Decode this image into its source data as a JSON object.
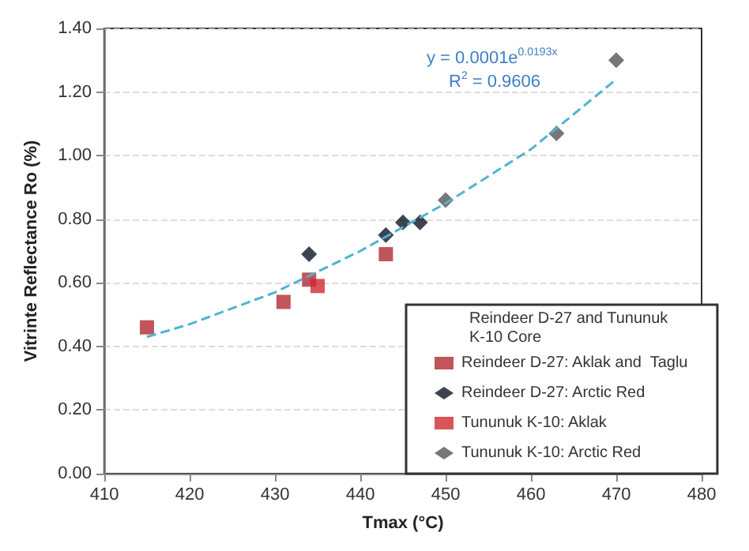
{
  "chart_data": {
    "type": "scatter",
    "xlabel": "Tmax (°C)",
    "ylabel": "Vitrinte Reflectance Ro (%)",
    "legend_title": "Reindeer D-27 and Tununuk K-10 Core",
    "annotations": [
      "y = 0.0001e$^{0.0193x}$",
      "R$^{2}$ = 0.9606"
    ],
    "xlim": [
      410,
      480
    ],
    "xticks": [
      410,
      420,
      430,
      440,
      450,
      460,
      470,
      480
    ],
    "ylim": [
      0,
      1.4
    ],
    "yticks": [
      {
        "value": 0,
        "label": "0.00"
      },
      {
        "value": 0.2,
        "label": "0.20"
      },
      {
        "value": 0.4,
        "label": "0.40"
      },
      {
        "value": 0.6,
        "label": "0.60"
      },
      {
        "value": 0.8,
        "label": "0.80"
      },
      {
        "value": 1.0,
        "label": "1.00"
      },
      {
        "value": 1.2,
        "label": "1.20"
      },
      {
        "value": 1.4,
        "label": "1.40"
      }
    ],
    "grid": "y",
    "legend": "bottom right",
    "series": [
      {
        "name": "Reindeer D-27: Aklak and  Taglu",
        "color": "#b22a32",
        "marker": "square",
        "x": [
          415,
          431,
          434,
          443
        ],
        "values": [
          0.46,
          0.54,
          0.61,
          0.69
        ]
      },
      {
        "name": "Reindeer D-27: Arctic Red",
        "color": "#0d1426",
        "marker": "diamond",
        "x": [
          434,
          443,
          445,
          447
        ],
        "values": [
          0.69,
          0.75,
          0.79,
          0.79
        ]
      },
      {
        "name": "Tununuk K-10: Aklak",
        "color": "#d0282e",
        "marker": "square",
        "x": [
          435
        ],
        "values": [
          0.59
        ]
      },
      {
        "name": "Tununuk K-10: Arctic Red",
        "color": "#555555",
        "marker": "diamond",
        "x": [
          450,
          463,
          470
        ],
        "values": [
          0.86,
          1.07,
          1.3
        ]
      },
      {
        "type": "line",
        "color": "#4fb3d3",
        "marker": "none",
        "line_style": "dashed",
        "x": [
          415,
          420,
          430,
          440,
          450,
          460,
          470
        ],
        "values": [
          0.43,
          0.47,
          0.57,
          0.7,
          0.85,
          1.02,
          1.24
        ]
      }
    ]
  }
}
